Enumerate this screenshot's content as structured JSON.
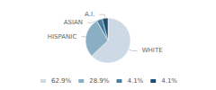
{
  "chart_data": {
    "type": "pie",
    "categories": [
      "WHITE",
      "HISPANIC",
      "ASIAN",
      "A.I."
    ],
    "values": [
      62.9,
      28.9,
      4.1,
      4.1
    ],
    "value_labels": [
      "62.9%",
      "28.9%",
      "4.1%",
      "4.1%"
    ],
    "colors": [
      "#cdd9e5",
      "#8aafc4",
      "#4a7ea0",
      "#1e4d6e"
    ],
    "legend": "bottom"
  }
}
